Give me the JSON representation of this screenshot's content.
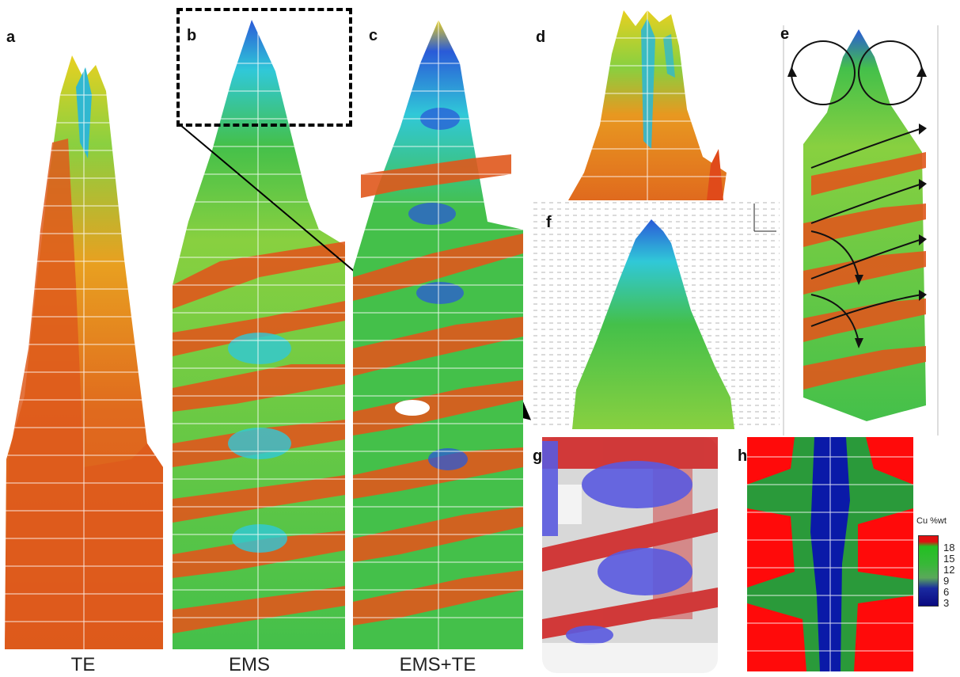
{
  "panels": {
    "a": {
      "letter": "a",
      "caption": "TE"
    },
    "b": {
      "letter": "b",
      "caption": "EMS"
    },
    "c": {
      "letter": "c",
      "caption": "EMS+TE"
    },
    "d": {
      "letter": "d"
    },
    "e": {
      "letter": "e"
    },
    "f": {
      "letter": "f"
    },
    "g": {
      "letter": "g"
    },
    "h": {
      "letter": "h"
    }
  },
  "legend": {
    "title": "Cu %wt",
    "ticks": [
      "18",
      "15",
      "12",
      "9",
      "6",
      "3"
    ],
    "colors": [
      "#e01010",
      "#22c022",
      "#38b838",
      "#5aa85a",
      "#1a2aa0",
      "#0a0a80"
    ]
  },
  "palette": {
    "red": "#e04a1a",
    "orange": "#ee8a20",
    "yellow": "#e8d020",
    "green": "#44c04a",
    "cyan": "#30c8d8",
    "blue": "#2a5ad8",
    "dark_blue": "#1a2aa0",
    "map_red": "#ff0a0a",
    "map_green": "#2a9a3a",
    "map_blue": "#0a1aa8"
  }
}
